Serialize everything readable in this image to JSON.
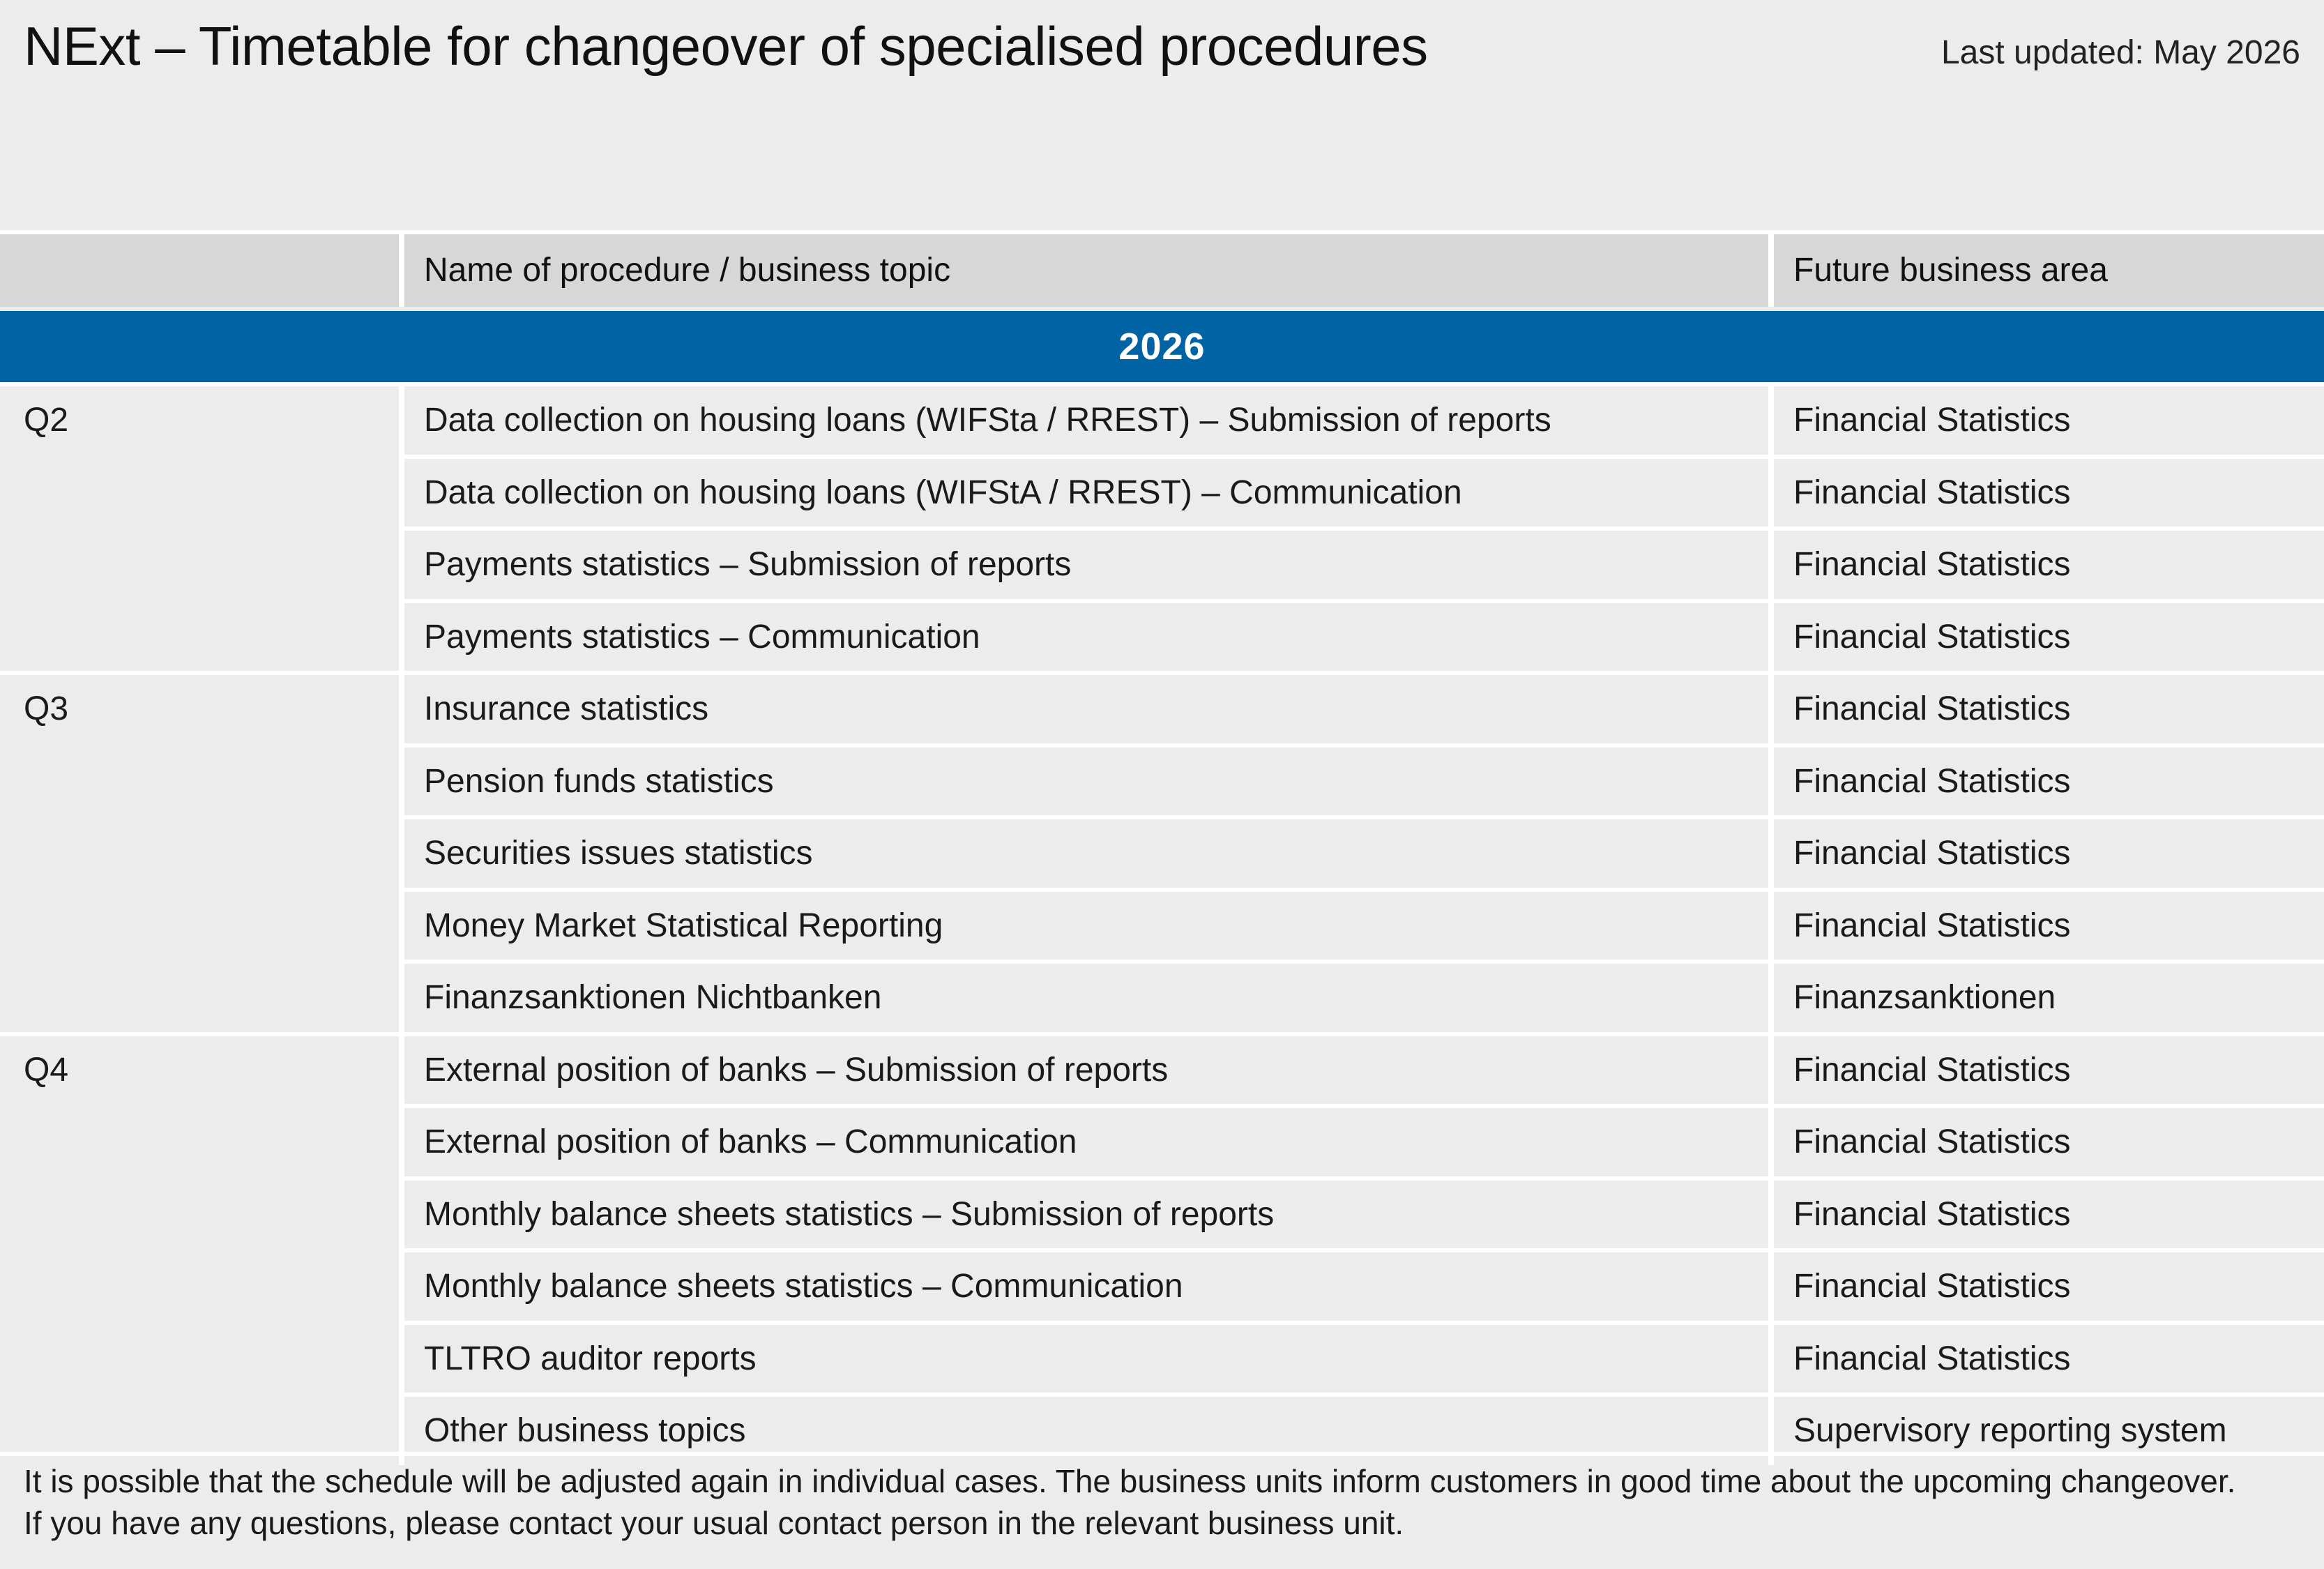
{
  "header": {
    "title": "NExt – Timetable for changeover of specialised procedures",
    "last_updated": "Last updated: May 2026"
  },
  "table": {
    "columns": [
      "",
      "Name of procedure / business topic",
      "Future business area"
    ],
    "year": "2026",
    "rows": [
      {
        "quarter": "Q2",
        "procedure": "Data collection on housing loans (WIFSta / RREST) – Submission of reports",
        "area": "Financial Statistics"
      },
      {
        "quarter": "",
        "procedure": "Data collection on housing loans (WIFStA / RREST) – Communication",
        "area": "Financial Statistics"
      },
      {
        "quarter": "",
        "procedure": "Payments statistics – Submission of reports",
        "area": "Financial Statistics"
      },
      {
        "quarter": "",
        "procedure": "Payments statistics – Communication",
        "area": "Financial Statistics"
      },
      {
        "quarter": "Q3",
        "procedure": "Insurance statistics",
        "area": "Financial Statistics"
      },
      {
        "quarter": "",
        "procedure": "Pension funds statistics",
        "area": "Financial Statistics"
      },
      {
        "quarter": "",
        "procedure": "Securities issues statistics",
        "area": "Financial Statistics"
      },
      {
        "quarter": "",
        "procedure": "Money Market Statistical Reporting",
        "area": "Financial Statistics"
      },
      {
        "quarter": "",
        "procedure": "Finanzsanktionen Nichtbanken",
        "area": "Finanzsanktionen"
      },
      {
        "quarter": "Q4",
        "procedure": "External position of banks – Submission of reports",
        "area": "Financial Statistics"
      },
      {
        "quarter": "",
        "procedure": "External position of banks – Communication",
        "area": "Financial Statistics"
      },
      {
        "quarter": "",
        "procedure": "Monthly balance sheets statistics – Submission of reports",
        "area": "Financial Statistics"
      },
      {
        "quarter": "",
        "procedure": "Monthly balance sheets statistics – Communication",
        "area": "Financial Statistics"
      },
      {
        "quarter": "",
        "procedure": "TLTRO auditor reports",
        "area": "Financial Statistics"
      },
      {
        "quarter": "",
        "procedure": "Other business topics",
        "area": "Supervisory reporting system"
      }
    ]
  },
  "footer": {
    "line1": "It is possible that the schedule will be adjusted again in individual cases. The business units inform customers in good time about the upcoming changeover.",
    "line2": "If you have any questions, please contact your usual contact person in the relevant business unit."
  },
  "colors": {
    "background": "#ececec",
    "header_row": "#d7d7d7",
    "year_band": "#0063a3",
    "separator": "#ffffff"
  }
}
